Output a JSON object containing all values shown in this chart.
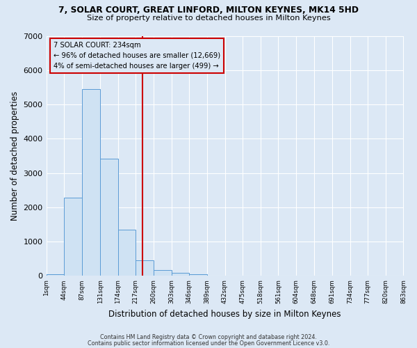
{
  "title_line1": "7, SOLAR COURT, GREAT LINFORD, MILTON KEYNES, MK14 5HD",
  "title_line2": "Size of property relative to detached houses in Milton Keynes",
  "xlabel": "Distribution of detached houses by size in Milton Keynes",
  "ylabel": "Number of detached properties",
  "bar_edges": [
    1,
    44,
    87,
    131,
    174,
    217,
    260,
    303,
    346,
    389,
    432,
    475,
    518,
    561,
    604,
    648,
    691,
    734,
    777,
    820,
    863
  ],
  "bar_heights": [
    50,
    2280,
    5450,
    3420,
    1340,
    450,
    175,
    80,
    50,
    0,
    0,
    0,
    0,
    0,
    0,
    0,
    0,
    0,
    0,
    0
  ],
  "bar_facecolor": "#cfe2f3",
  "bar_edgecolor": "#5b9bd5",
  "vline_x": 234,
  "vline_color": "#cc0000",
  "ylim": [
    0,
    7000
  ],
  "yticks": [
    0,
    1000,
    2000,
    3000,
    4000,
    5000,
    6000,
    7000
  ],
  "annotation_title": "7 SOLAR COURT: 234sqm",
  "annotation_line2": "← 96% of detached houses are smaller (12,669)",
  "annotation_line3": "4% of semi-detached houses are larger (499) →",
  "footer_line1": "Contains HM Land Registry data © Crown copyright and database right 2024.",
  "footer_line2": "Contains public sector information licensed under the Open Government Licence v3.0.",
  "bg_color": "#dce8f5",
  "grid_color": "#ffffff",
  "tick_labels": [
    "1sqm",
    "44sqm",
    "87sqm",
    "131sqm",
    "174sqm",
    "217sqm",
    "260sqm",
    "303sqm",
    "346sqm",
    "389sqm",
    "432sqm",
    "475sqm",
    "518sqm",
    "561sqm",
    "604sqm",
    "648sqm",
    "691sqm",
    "734sqm",
    "777sqm",
    "820sqm",
    "863sqm"
  ]
}
